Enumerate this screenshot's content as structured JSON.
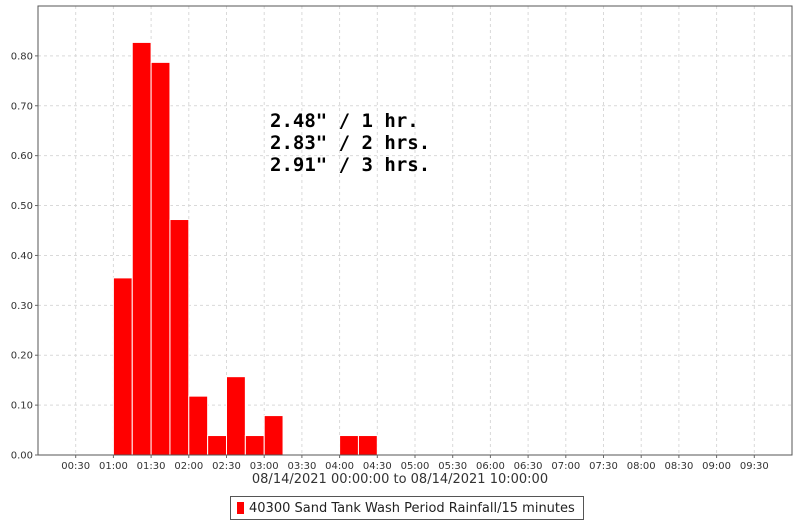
{
  "chart_data": {
    "type": "bar",
    "x_interval_minutes": 15,
    "x_tick_labels": [
      "00:30",
      "01:00",
      "01:30",
      "02:00",
      "02:30",
      "03:00",
      "03:30",
      "04:00",
      "04:30",
      "05:00",
      "05:30",
      "06:00",
      "06:30",
      "07:00",
      "07:30",
      "08:00",
      "08:30",
      "09:00",
      "09:30"
    ],
    "y_tick_labels": [
      "0.00",
      "0.10",
      "0.20",
      "0.30",
      "0.40",
      "0.50",
      "0.60",
      "0.70",
      "0.80"
    ],
    "ylim": [
      0,
      0.9
    ],
    "xlim": [
      "00:00",
      "10:00"
    ],
    "bars": [
      {
        "start": "01:00",
        "value": 0.355
      },
      {
        "start": "01:15",
        "value": 0.827
      },
      {
        "start": "01:30",
        "value": 0.787
      },
      {
        "start": "01:45",
        "value": 0.472
      },
      {
        "start": "02:00",
        "value": 0.118
      },
      {
        "start": "02:15",
        "value": 0.039
      },
      {
        "start": "02:30",
        "value": 0.157
      },
      {
        "start": "02:45",
        "value": 0.039
      },
      {
        "start": "03:00",
        "value": 0.079
      },
      {
        "start": "04:00",
        "value": 0.039
      },
      {
        "start": "04:15",
        "value": 0.039
      }
    ],
    "x_range_label": "08/14/2021 00:00:00 to 08/14/2021 10:00:00",
    "legend": [
      {
        "label": "40300 Sand Tank Wash Period Rainfall/15 minutes",
        "color": "#ff0000"
      }
    ],
    "annotations": [
      "2.48\" / 1 hr.",
      "2.83\" / 2 hrs.",
      "2.91\" / 3 hrs."
    ],
    "bar_color": "#ff0000",
    "grid": true,
    "legend_position": "bottom"
  }
}
